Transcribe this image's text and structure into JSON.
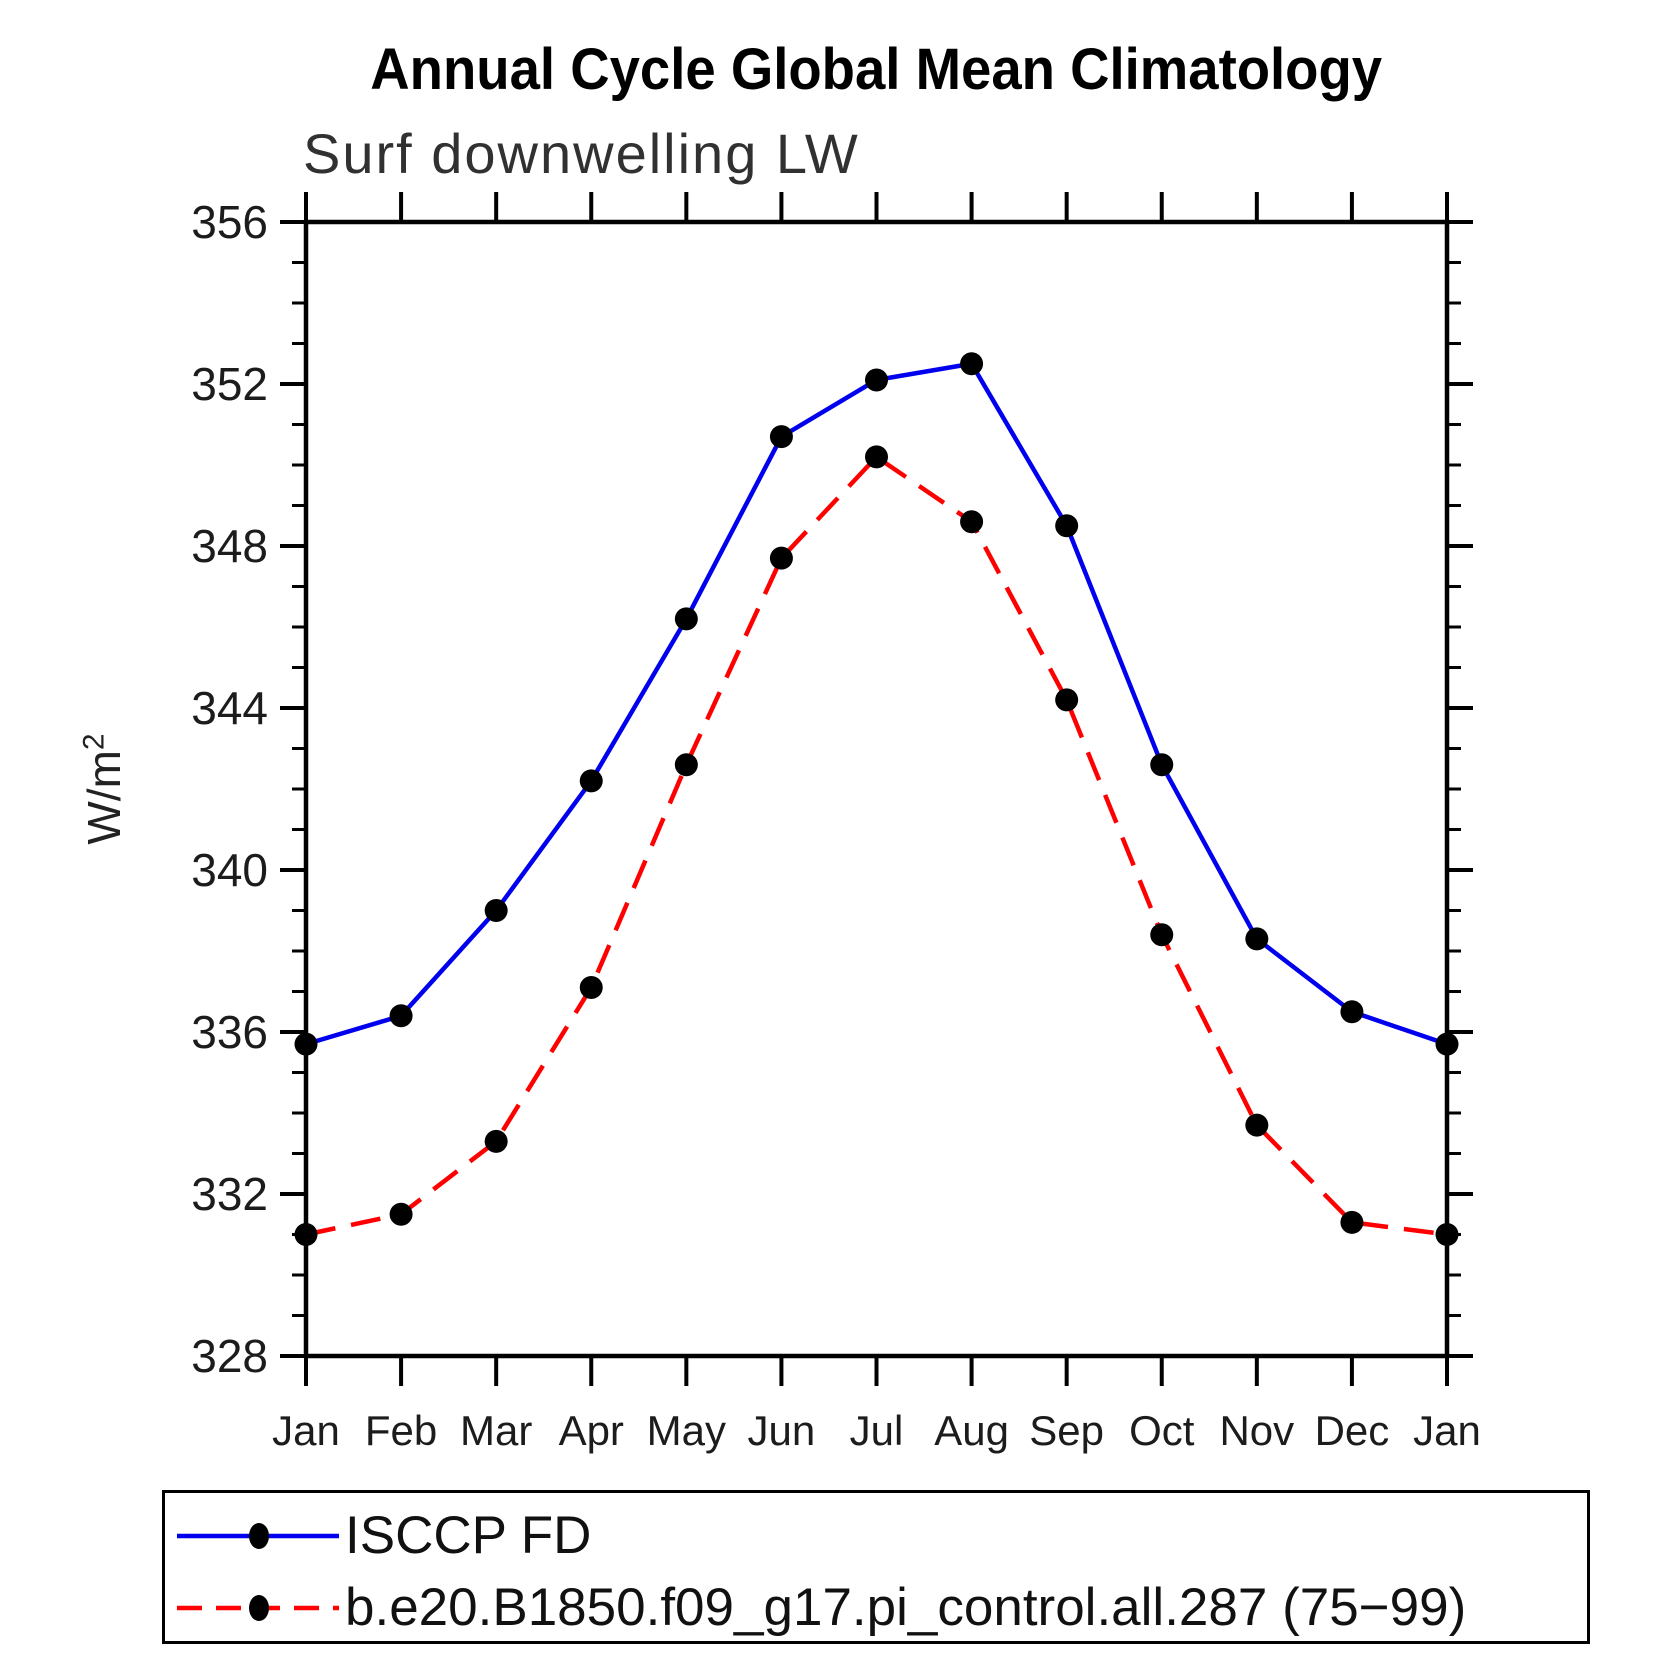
{
  "title": "Annual Cycle Global Mean Climatology",
  "subtitle": "Surf downwelling LW",
  "y_axis": {
    "label_base": "W/m",
    "label_superscript": "2"
  },
  "colors": {
    "obs_line": "#0000ee",
    "model_line": "#ff0000",
    "marker": "#000000",
    "axis": "#000000",
    "tick_label": "#1c1c1c"
  },
  "chart_data": {
    "type": "line",
    "title": "Annual Cycle Global Mean Climatology",
    "subtitle": "Surf downwelling LW",
    "ylabel": "W/m^2",
    "x_tick_labels": [
      "Jan",
      "Feb",
      "Mar",
      "Apr",
      "May",
      "Jun",
      "Jul",
      "Aug",
      "Sep",
      "Oct",
      "Nov",
      "Dec",
      "Jan"
    ],
    "ylim": [
      328,
      356
    ],
    "ytick_major": [
      328,
      332,
      336,
      340,
      344,
      348,
      352,
      356
    ],
    "ytick_minor_step": 1,
    "grid": false,
    "legend_position": "bottom",
    "series": [
      {
        "name": "ISCCP FD",
        "color": "#0000ee",
        "style": "solid",
        "marker": "filled-circle",
        "values": [
          335.7,
          336.4,
          339.0,
          342.2,
          346.2,
          350.7,
          352.1,
          352.5,
          348.5,
          342.6,
          338.3,
          336.5,
          335.7
        ]
      },
      {
        "name": "b.e20.B1850.f09_g17.pi_control.all.287 (75−99)",
        "color": "#ff0000",
        "style": "dashed",
        "marker": "filled-circle",
        "values": [
          331.0,
          331.5,
          333.3,
          337.1,
          342.6,
          347.7,
          350.2,
          348.6,
          344.2,
          338.4,
          333.7,
          331.3,
          331.0
        ]
      }
    ]
  }
}
